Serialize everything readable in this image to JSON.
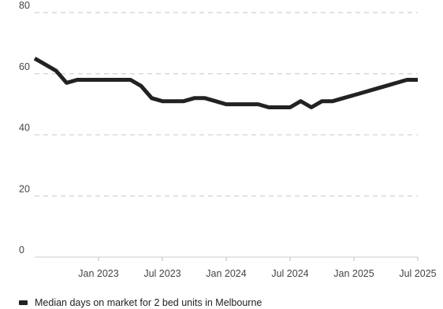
{
  "chart_data": {
    "type": "line",
    "title": "",
    "xlabel": "",
    "ylabel": "",
    "ylim": [
      0,
      80
    ],
    "yticks": [
      0,
      20,
      40,
      60,
      80
    ],
    "grid": true,
    "legend_placement": "bottom-left",
    "x_tick_labels": [
      {
        "date": "2023-01",
        "label": "Jan 2023"
      },
      {
        "date": "2023-07",
        "label": "Jul 2023"
      },
      {
        "date": "2024-01",
        "label": "Jan 2024"
      },
      {
        "date": "2024-07",
        "label": "Jul 2024"
      },
      {
        "date": "2025-01",
        "label": "Jan 2025"
      },
      {
        "date": "2025-07",
        "label": "Jul 2025"
      }
    ],
    "xlim": [
      "2022-07",
      "2025-07"
    ],
    "series": [
      {
        "name": "Median days on market for 2 bed units in Melbourne",
        "color": "#222222",
        "x": [
          "2022-07",
          "2022-08",
          "2022-09",
          "2022-10",
          "2022-11",
          "2022-12",
          "2023-01",
          "2023-02",
          "2023-03",
          "2023-04",
          "2023-05",
          "2023-06",
          "2023-07",
          "2023-08",
          "2023-09",
          "2023-10",
          "2023-11",
          "2023-12",
          "2024-01",
          "2024-02",
          "2024-03",
          "2024-04",
          "2024-05",
          "2024-06",
          "2024-07",
          "2024-08",
          "2024-09",
          "2024-10",
          "2024-11",
          "2024-12",
          "2025-01",
          "2025-02",
          "2025-03",
          "2025-04",
          "2025-05",
          "2025-06",
          "2025-07"
        ],
        "values": [
          65,
          63,
          61,
          57,
          58,
          58,
          58,
          58,
          58,
          58,
          56,
          52,
          51,
          51,
          51,
          52,
          52,
          51,
          50,
          50,
          50,
          50,
          49,
          49,
          49,
          51,
          49,
          51,
          51,
          52,
          53,
          54,
          55,
          56,
          57,
          58,
          58
        ]
      }
    ]
  }
}
